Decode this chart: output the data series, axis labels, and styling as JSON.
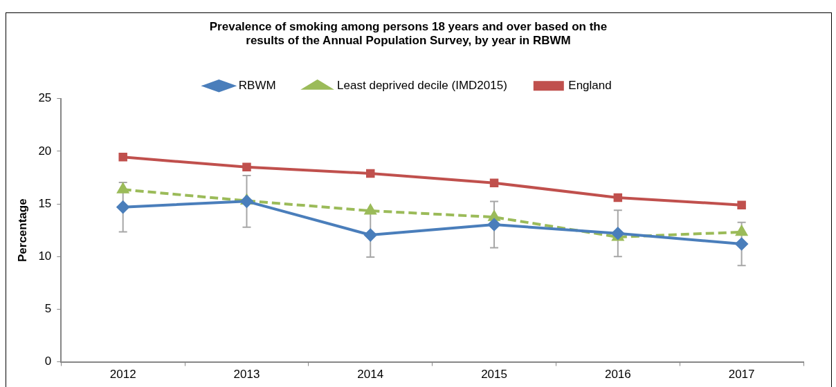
{
  "chart_data": {
    "type": "line",
    "title": "Prevalence of smoking among persons 18 years and over based on the\nresults of the Annual Population Survey, by year in RBWM",
    "ylabel": "Percentage",
    "categories": [
      "2012",
      "2013",
      "2014",
      "2015",
      "2016",
      "2017"
    ],
    "series": [
      {
        "name": "RBWM",
        "color": "#4a7ebb",
        "marker": "diamond",
        "line_style": "solid",
        "values": [
          14.7,
          15.25,
          12.05,
          13.04,
          12.2,
          11.2
        ],
        "errors": [
          2.35,
          2.45,
          2.1,
          2.2,
          2.2,
          2.05
        ]
      },
      {
        "name": "Least deprived decile (IMD2015)",
        "color": "#9bbb59",
        "marker": "triangle",
        "line_style": "dashed",
        "values": [
          16.37,
          15.3,
          14.35,
          13.75,
          11.86,
          12.33
        ]
      },
      {
        "name": "England",
        "color": "#c0504d",
        "marker": "square",
        "line_style": "solid",
        "values": [
          19.45,
          18.5,
          17.9,
          17.0,
          15.6,
          14.9
        ]
      }
    ],
    "ylim": [
      0,
      25
    ],
    "yticks": [
      0,
      5,
      10,
      15,
      20,
      25
    ],
    "grid": false,
    "legend": "top"
  }
}
